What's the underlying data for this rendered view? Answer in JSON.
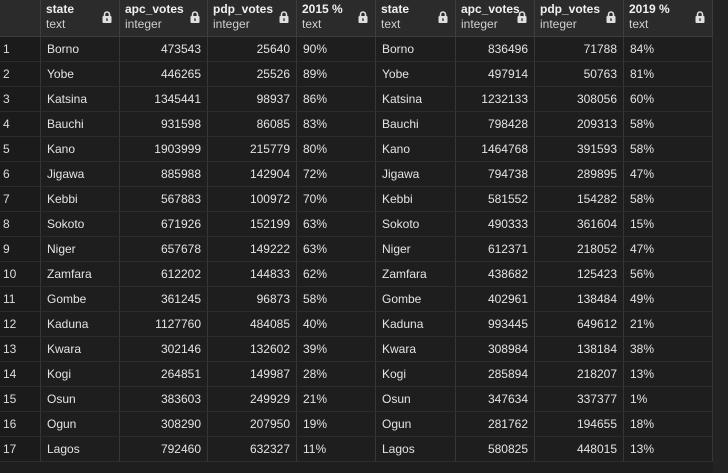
{
  "columns": [
    {
      "name": "state",
      "type": "text",
      "kind": "text"
    },
    {
      "name": "apc_votes",
      "type": "integer",
      "kind": "num"
    },
    {
      "name": "pdp_votes",
      "type": "integer",
      "kind": "num"
    },
    {
      "name": "2015 %",
      "type": "text",
      "kind": "text"
    },
    {
      "name": "state",
      "type": "text",
      "kind": "text"
    },
    {
      "name": "apc_votes",
      "type": "integer",
      "kind": "num"
    },
    {
      "name": "pdp_votes",
      "type": "integer",
      "kind": "num"
    },
    {
      "name": "2019 %",
      "type": "text",
      "kind": "text"
    }
  ],
  "rows": [
    {
      "n": "1",
      "cells": [
        "Borno",
        "473543",
        "25640",
        "90%",
        "Borno",
        "836496",
        "71788",
        "84%"
      ]
    },
    {
      "n": "2",
      "cells": [
        "Yobe",
        "446265",
        "25526",
        "89%",
        "Yobe",
        "497914",
        "50763",
        "81%"
      ]
    },
    {
      "n": "3",
      "cells": [
        "Katsina",
        "1345441",
        "98937",
        "86%",
        "Katsina",
        "1232133",
        "308056",
        "60%"
      ]
    },
    {
      "n": "4",
      "cells": [
        "Bauchi",
        "931598",
        "86085",
        "83%",
        "Bauchi",
        "798428",
        "209313",
        "58%"
      ]
    },
    {
      "n": "5",
      "cells": [
        "Kano",
        "1903999",
        "215779",
        "80%",
        "Kano",
        "1464768",
        "391593",
        "58%"
      ]
    },
    {
      "n": "6",
      "cells": [
        "Jigawa",
        "885988",
        "142904",
        "72%",
        "Jigawa",
        "794738",
        "289895",
        "47%"
      ]
    },
    {
      "n": "7",
      "cells": [
        "Kebbi",
        "567883",
        "100972",
        "70%",
        "Kebbi",
        "581552",
        "154282",
        "58%"
      ]
    },
    {
      "n": "8",
      "cells": [
        "Sokoto",
        "671926",
        "152199",
        "63%",
        "Sokoto",
        "490333",
        "361604",
        "15%"
      ]
    },
    {
      "n": "9",
      "cells": [
        "Niger",
        "657678",
        "149222",
        "63%",
        "Niger",
        "612371",
        "218052",
        "47%"
      ]
    },
    {
      "n": "10",
      "cells": [
        "Zamfara",
        "612202",
        "144833",
        "62%",
        "Zamfara",
        "438682",
        "125423",
        "56%"
      ]
    },
    {
      "n": "11",
      "cells": [
        "Gombe",
        "361245",
        "96873",
        "58%",
        "Gombe",
        "402961",
        "138484",
        "49%"
      ]
    },
    {
      "n": "12",
      "cells": [
        "Kaduna",
        "1127760",
        "484085",
        "40%",
        "Kaduna",
        "993445",
        "649612",
        "21%"
      ]
    },
    {
      "n": "13",
      "cells": [
        "Kwara",
        "302146",
        "132602",
        "39%",
        "Kwara",
        "308984",
        "138184",
        "38%"
      ]
    },
    {
      "n": "14",
      "cells": [
        "Kogi",
        "264851",
        "149987",
        "28%",
        "Kogi",
        "285894",
        "218207",
        "13%"
      ]
    },
    {
      "n": "15",
      "cells": [
        "Osun",
        "383603",
        "249929",
        "21%",
        "Osun",
        "347634",
        "337377",
        "1%"
      ]
    },
    {
      "n": "16",
      "cells": [
        "Ogun",
        "308290",
        "207950",
        "19%",
        "Ogun",
        "281762",
        "194655",
        "18%"
      ]
    },
    {
      "n": "17",
      "cells": [
        "Lagos",
        "792460",
        "632327",
        "11%",
        "Lagos",
        "580825",
        "448015",
        "13%"
      ]
    }
  ]
}
